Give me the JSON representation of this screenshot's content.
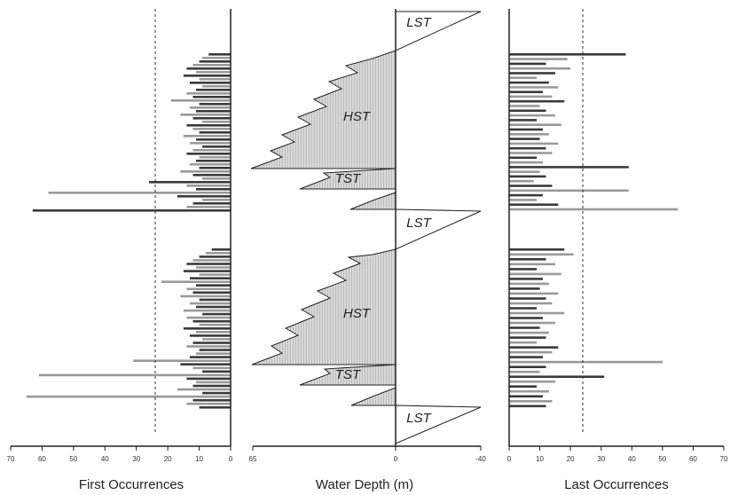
{
  "colors": {
    "bar_dark": "#3a3a3a",
    "bar_light": "#9a9a9a",
    "axis": "#222222",
    "wedge_fill": "#d9d9d9",
    "wedge_hatch": "#9c9c9c"
  },
  "chart_data": [
    {
      "type": "bar",
      "orientation": "horizontal",
      "direction": "right-to-left",
      "xlabel": "First Occurrences",
      "xlim": [
        0,
        70
      ],
      "xticks": [
        "70",
        "60",
        "50",
        "40",
        "30",
        "20",
        "10",
        "0"
      ],
      "reference_line": 25,
      "values": [
        7,
        9,
        10,
        12,
        14,
        11,
        15,
        10,
        13,
        9,
        11,
        14,
        12,
        19,
        10,
        13,
        11,
        16,
        12,
        9,
        14,
        12,
        10,
        15,
        11,
        13,
        9,
        12,
        14,
        10,
        11,
        13,
        10,
        16,
        12,
        9,
        26,
        14,
        11,
        58,
        17,
        9,
        12,
        14,
        63,
        6,
        8,
        10,
        12,
        14,
        11,
        15,
        10,
        13,
        22,
        11,
        14,
        12,
        16,
        10,
        13,
        11,
        15,
        9,
        14,
        12,
        10,
        15,
        11,
        13,
        9,
        12,
        14,
        10,
        11,
        13,
        31,
        16,
        12,
        9,
        61,
        14,
        11,
        12,
        17,
        9,
        65,
        12,
        14,
        10
      ]
    },
    {
      "type": "area",
      "xlabel": "Water Depth (m)",
      "xlim": [
        65,
        -40
      ],
      "xticks": [
        "65",
        "0",
        "-40"
      ],
      "tracts": [
        "LST",
        "HST",
        "TST",
        "LST",
        "HST",
        "TST",
        "LST"
      ]
    },
    {
      "type": "bar",
      "orientation": "horizontal",
      "direction": "left-to-right",
      "xlabel": "Last Occurrences",
      "xlim": [
        0,
        70
      ],
      "xticks": [
        "0",
        "10",
        "20",
        "30",
        "40",
        "50",
        "60",
        "70"
      ],
      "reference_line": 24,
      "values": [
        38,
        19,
        12,
        20,
        15,
        9,
        13,
        16,
        11,
        14,
        18,
        10,
        12,
        15,
        9,
        17,
        11,
        13,
        10,
        16,
        12,
        14,
        9,
        11,
        39,
        10,
        12,
        8,
        14,
        39,
        11,
        9,
        16,
        55,
        18,
        21,
        12,
        15,
        9,
        17,
        11,
        13,
        10,
        16,
        12,
        14,
        9,
        18,
        11,
        15,
        10,
        13,
        12,
        9,
        16,
        14,
        11,
        50,
        12,
        10,
        31,
        15,
        9,
        13,
        11,
        14,
        12
      ]
    }
  ]
}
